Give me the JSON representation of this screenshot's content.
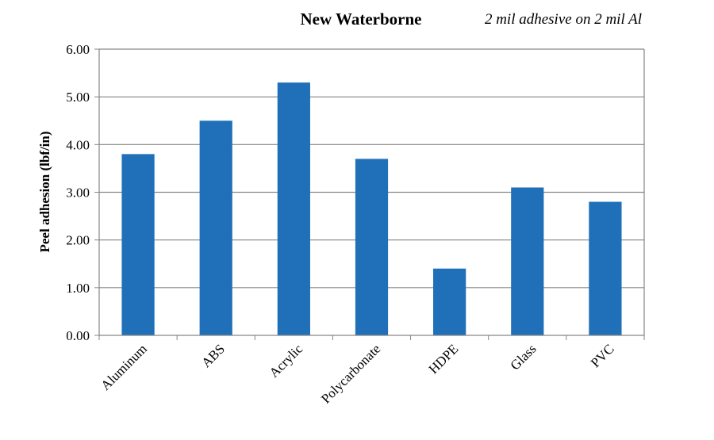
{
  "chart_data": {
    "type": "bar",
    "title": "New Waterborne",
    "subtitle": "2 mil adhesive on 2 mil Al",
    "xlabel": "",
    "ylabel": "Peel adhesion (lbf/in)",
    "categories": [
      "Aluminum",
      "ABS",
      "Acrylic",
      "Polycarbonate",
      "HDPE",
      "Glass",
      "PVC"
    ],
    "values": [
      3.8,
      4.5,
      5.3,
      3.7,
      1.4,
      3.1,
      2.8
    ],
    "ylim": [
      0,
      6
    ],
    "yticks": [
      "0.00",
      "1.00",
      "2.00",
      "3.00",
      "4.00",
      "5.00",
      "6.00"
    ],
    "grid": true,
    "legend": "none",
    "bar_color": "#1F70B8"
  }
}
